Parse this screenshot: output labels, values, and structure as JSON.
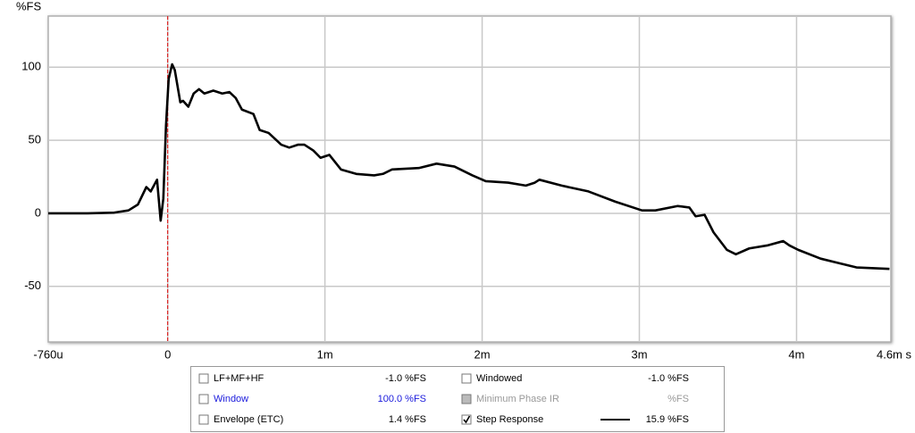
{
  "chart_data": {
    "type": "line",
    "y_label": "%FS",
    "xlim": [
      -0.00076,
      0.0046
    ],
    "xticks": [
      {
        "value": -0.00076,
        "label": "-760u"
      },
      0,
      {
        "value": 0.001,
        "label": "1m"
      },
      {
        "value": 0.002,
        "label": "2m"
      },
      {
        "value": 0.003,
        "label": "3m"
      },
      {
        "value": 0.004,
        "label": "4m"
      },
      {
        "value": 0.0046,
        "label": "4.6m s"
      }
    ],
    "ylim": [
      -88,
      135
    ],
    "yticks": [
      100,
      50,
      0,
      -50
    ],
    "grid": true,
    "x": [
      -0.00076,
      -0.00051,
      -0.00034,
      -0.00025,
      -0.00019,
      -0.000136,
      -0.000108,
      -6.8e-05,
      -4.5e-05,
      -2.8e-05,
      -1.1e-05,
      6e-06,
      2.8e-05,
      4.5e-05,
      8e-05,
      9.7e-05,
      0.000131,
      0.000165,
      0.000199,
      0.000233,
      0.00029,
      0.000347,
      0.000392,
      0.000432,
      0.000472,
      0.000545,
      0.000585,
      0.000642,
      0.000722,
      0.000773,
      0.00083,
      0.000869,
      0.000926,
      0.000972,
      0.001028,
      0.001102,
      0.001199,
      0.001313,
      0.001369,
      0.001426,
      0.001597,
      0.00171,
      0.001824,
      0.001938,
      0.002023,
      0.002165,
      0.002278,
      0.002335,
      0.002364,
      0.002506,
      0.002676,
      0.002847,
      0.003017,
      0.003102,
      0.003244,
      0.003318,
      0.003358,
      0.003415,
      0.003472,
      0.003557,
      0.003614,
      0.003699,
      0.003813,
      0.003915,
      0.003955,
      0.004011,
      0.004153,
      0.004267,
      0.004381,
      0.004591
    ],
    "series": [
      {
        "name": "Step Response",
        "color": "#000000",
        "values": [
          0,
          0,
          0.5,
          2,
          6,
          18,
          15,
          23,
          -5,
          10,
          60,
          92,
          102,
          98,
          76,
          77,
          73,
          82,
          85,
          82,
          84,
          82,
          83,
          79,
          71,
          68,
          57,
          55,
          47,
          45,
          47,
          47,
          43,
          38,
          40,
          30,
          27,
          26,
          27,
          30,
          31,
          34,
          32,
          26,
          22,
          21,
          19,
          21,
          23,
          19,
          15,
          8,
          2,
          2,
          5,
          4,
          -2,
          -1,
          -13,
          -25,
          -28,
          -24,
          -22,
          -19,
          -22,
          -25,
          -31,
          -34,
          -37,
          -38
        ]
      }
    ],
    "legend_panel": [
      {
        "name": "LF+MF+HF",
        "value": "-1.0 %FS",
        "checked": false,
        "style": "normal"
      },
      {
        "name": "Windowed",
        "value": "-1.0 %FS",
        "checked": false,
        "style": "normal"
      },
      {
        "name": "Window",
        "value": "100.0 %FS",
        "checked": false,
        "style": "highlight"
      },
      {
        "name": "Minimum Phase IR",
        "value": "%FS",
        "checked": false,
        "style": "disabled"
      },
      {
        "name": "Envelope (ETC)",
        "value": "1.4 %FS",
        "checked": false,
        "style": "normal"
      },
      {
        "value": "15.9 %FS",
        "checked": true,
        "style": "normal",
        "series": 0
      }
    ]
  }
}
